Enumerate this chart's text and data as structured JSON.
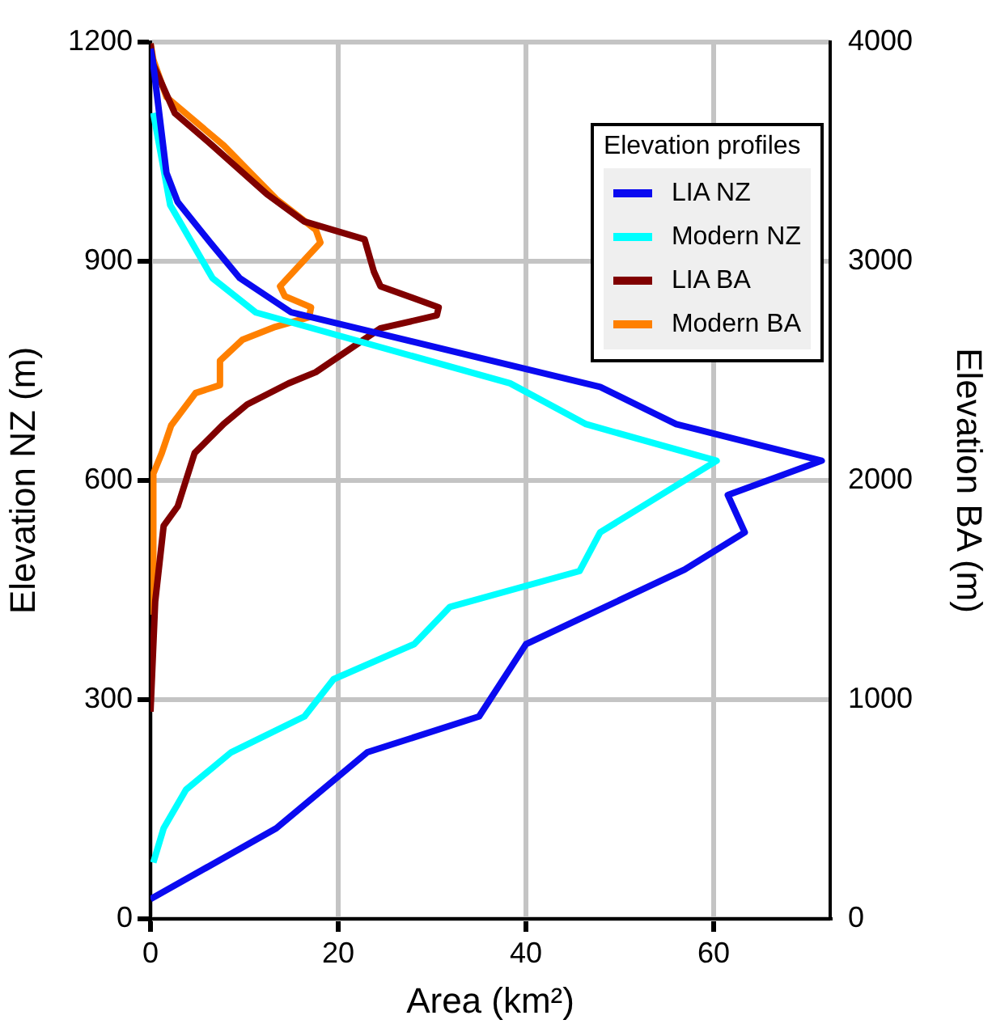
{
  "chart_data": {
    "type": "line",
    "xlabel": "Area (km²)",
    "ylabel": "Elevation NZ (m)",
    "y2label": "Elevation BA (m)",
    "legend_title": "Elevation profiles",
    "legend": "top right",
    "grid": true,
    "xlim": [
      0,
      72.4
    ],
    "xticks": [
      0,
      20,
      40,
      60
    ],
    "ylim": [
      0,
      1200
    ],
    "yticks": [
      0,
      300,
      600,
      900,
      1200
    ],
    "y2lim": [
      0,
      4000
    ],
    "y2ticks": [
      0,
      1000,
      2000,
      3000,
      4000
    ],
    "series": [
      {
        "name": "LIA NZ",
        "color": "#0a0af0",
        "x": [
          0,
          13.4,
          23.1,
          35.0,
          40.0,
          56.9,
          63.3,
          61.5,
          71.5,
          56.0,
          47.9,
          15.0,
          9.5,
          6.4,
          2.9,
          1.7,
          0.3,
          0
        ],
        "values": [
          27,
          124,
          228,
          277,
          376,
          478,
          529,
          580,
          627,
          677,
          728,
          830,
          877,
          925,
          981,
          1021,
          1169,
          1191
        ]
      },
      {
        "name": "Modern NZ",
        "color": "#00ffff",
        "x": [
          0.3,
          1.4,
          3.8,
          8.6,
          16.4,
          19.5,
          28.1,
          31.9,
          45.7,
          47.9,
          60.3,
          46.4,
          38.3,
          11.2,
          6.6,
          2.1,
          0.3
        ],
        "values": [
          77,
          124,
          177,
          228,
          277,
          328,
          376,
          427,
          476,
          529,
          627,
          677,
          733,
          830,
          877,
          977,
          1103
        ]
      },
      {
        "name": "LIA BA",
        "color": "#800000",
        "axis": "y2",
        "x": [
          0,
          0.5,
          1.4,
          2.9,
          4.7,
          7.8,
          10.3,
          14.7,
          17.6,
          24.5,
          30.5,
          30.7,
          24.5,
          23.8,
          22.8,
          16.4,
          12.4,
          6.6,
          2.6,
          0.3,
          0
        ],
        "values": [
          945,
          1447,
          1793,
          1882,
          2125,
          2258,
          2347,
          2443,
          2494,
          2694,
          2753,
          2790,
          2886,
          2952,
          3100,
          3181,
          3306,
          3528,
          3675,
          3897,
          3993
        ]
      },
      {
        "name": "Modern BA",
        "color": "#ff8000",
        "axis": "y2",
        "x": [
          0.2,
          0.3,
          1.2,
          2.2,
          4.8,
          7.4,
          7.4,
          9.8,
          13.3,
          16.9,
          17.1,
          14.3,
          13.8,
          18.1,
          17.6,
          13.4,
          7.8,
          1.7,
          0.3,
          0
        ],
        "values": [
          1387,
          2030,
          2125,
          2251,
          2399,
          2435,
          2546,
          2642,
          2701,
          2745,
          2790,
          2841,
          2886,
          3085,
          3144,
          3284,
          3528,
          3749,
          3919,
          3993
        ]
      }
    ]
  }
}
